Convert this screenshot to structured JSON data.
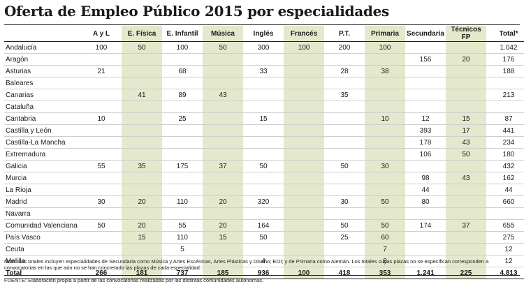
{
  "title": "Oferta de Empleo Público 2015 por especialidades",
  "note": "Nota: Los totales incluyen especialidades de Secundaria como Música y Artes Escénicas, Artes Plásticas y Diseño; EOI; y de Primaria como Alemán. Los totales cuyas plazas no se especifican corresponden a convocatorias en las que aún no se han concretado las plazas de cada especialidad.",
  "source": "FUENTE: Elaboración propia a partir de las convocatorias realizadas por las distintas comunidades autónomas.",
  "colors": {
    "shade": "#e4e8cd",
    "rule": "#222222"
  },
  "chart_data": {
    "type": "table",
    "columns": [
      "",
      "A y L",
      "E. Física",
      "E. Infantil",
      "Música",
      "Inglés",
      "Francés",
      "P.T.",
      "Primaria",
      "Secundaria",
      "Técnicos FP",
      "Total*"
    ],
    "rows": [
      [
        "Andalucía",
        "100",
        "50",
        "100",
        "50",
        "300",
        "100",
        "200",
        "100",
        "",
        "",
        "1.042"
      ],
      [
        "Aragón",
        "",
        "",
        "",
        "",
        "",
        "",
        "",
        "",
        "156",
        "20",
        "176"
      ],
      [
        "Asturias",
        "21",
        "",
        "68",
        "",
        "33",
        "",
        "28",
        "38",
        "",
        "",
        "188"
      ],
      [
        "Baleares",
        "",
        "",
        "",
        "",
        "",
        "",
        "",
        "",
        "",
        "",
        ""
      ],
      [
        "Canarias",
        "",
        "41",
        "89",
        "43",
        "",
        "",
        "35",
        "",
        "",
        "",
        "213"
      ],
      [
        "Cataluña",
        "",
        "",
        "",
        "",
        "",
        "",
        "",
        "",
        "",
        "",
        ""
      ],
      [
        "Cantabria",
        "10",
        "",
        "25",
        "",
        "15",
        "",
        "",
        "10",
        "12",
        "15",
        "87"
      ],
      [
        "Castilla y León",
        "",
        "",
        "",
        "",
        "",
        "",
        "",
        "",
        "393",
        "17",
        "441"
      ],
      [
        "Castilla-La Mancha",
        "",
        "",
        "",
        "",
        "",
        "",
        "",
        "",
        "178",
        "43",
        "234"
      ],
      [
        "Extremadura",
        "",
        "",
        "",
        "",
        "",
        "",
        "",
        "",
        "106",
        "50",
        "180"
      ],
      [
        "Galicia",
        "55",
        "35",
        "175",
        "37",
        "50",
        "",
        "50",
        "30",
        "",
        "",
        "432"
      ],
      [
        "Murcia",
        "",
        "",
        "",
        "",
        "",
        "",
        "",
        "",
        "98",
        "43",
        "162"
      ],
      [
        "La Rioja",
        "",
        "",
        "",
        "",
        "",
        "",
        "",
        "",
        "44",
        "",
        "44"
      ],
      [
        "Madrid",
        "30",
        "20",
        "110",
        "20",
        "320",
        "",
        "30",
        "50",
        "80",
        "",
        "660"
      ],
      [
        "Navarra",
        "",
        "",
        "",
        "",
        "",
        "",
        "",
        "",
        "",
        "",
        ""
      ],
      [
        "Comunidad Valenciana",
        "50",
        "20",
        "55",
        "20",
        "164",
        "",
        "50",
        "50",
        "174",
        "37",
        "655"
      ],
      [
        "País Vasco",
        "",
        "15",
        "110",
        "15",
        "50",
        "",
        "25",
        "60",
        "",
        "",
        "275"
      ],
      [
        "Ceuta",
        "",
        "",
        "5",
        "",
        "",
        "",
        "",
        "7",
        "",
        "",
        "12"
      ],
      [
        "Melilla",
        "",
        "",
        "",
        "",
        "4",
        "",
        "",
        "8",
        "",
        "",
        "12"
      ]
    ],
    "total": [
      "Total",
      "266",
      "181",
      "737",
      "185",
      "936",
      "100",
      "418",
      "353",
      "1.241",
      "225",
      "4.813"
    ],
    "shaded_columns": [
      2,
      4,
      6,
      8,
      10
    ]
  }
}
